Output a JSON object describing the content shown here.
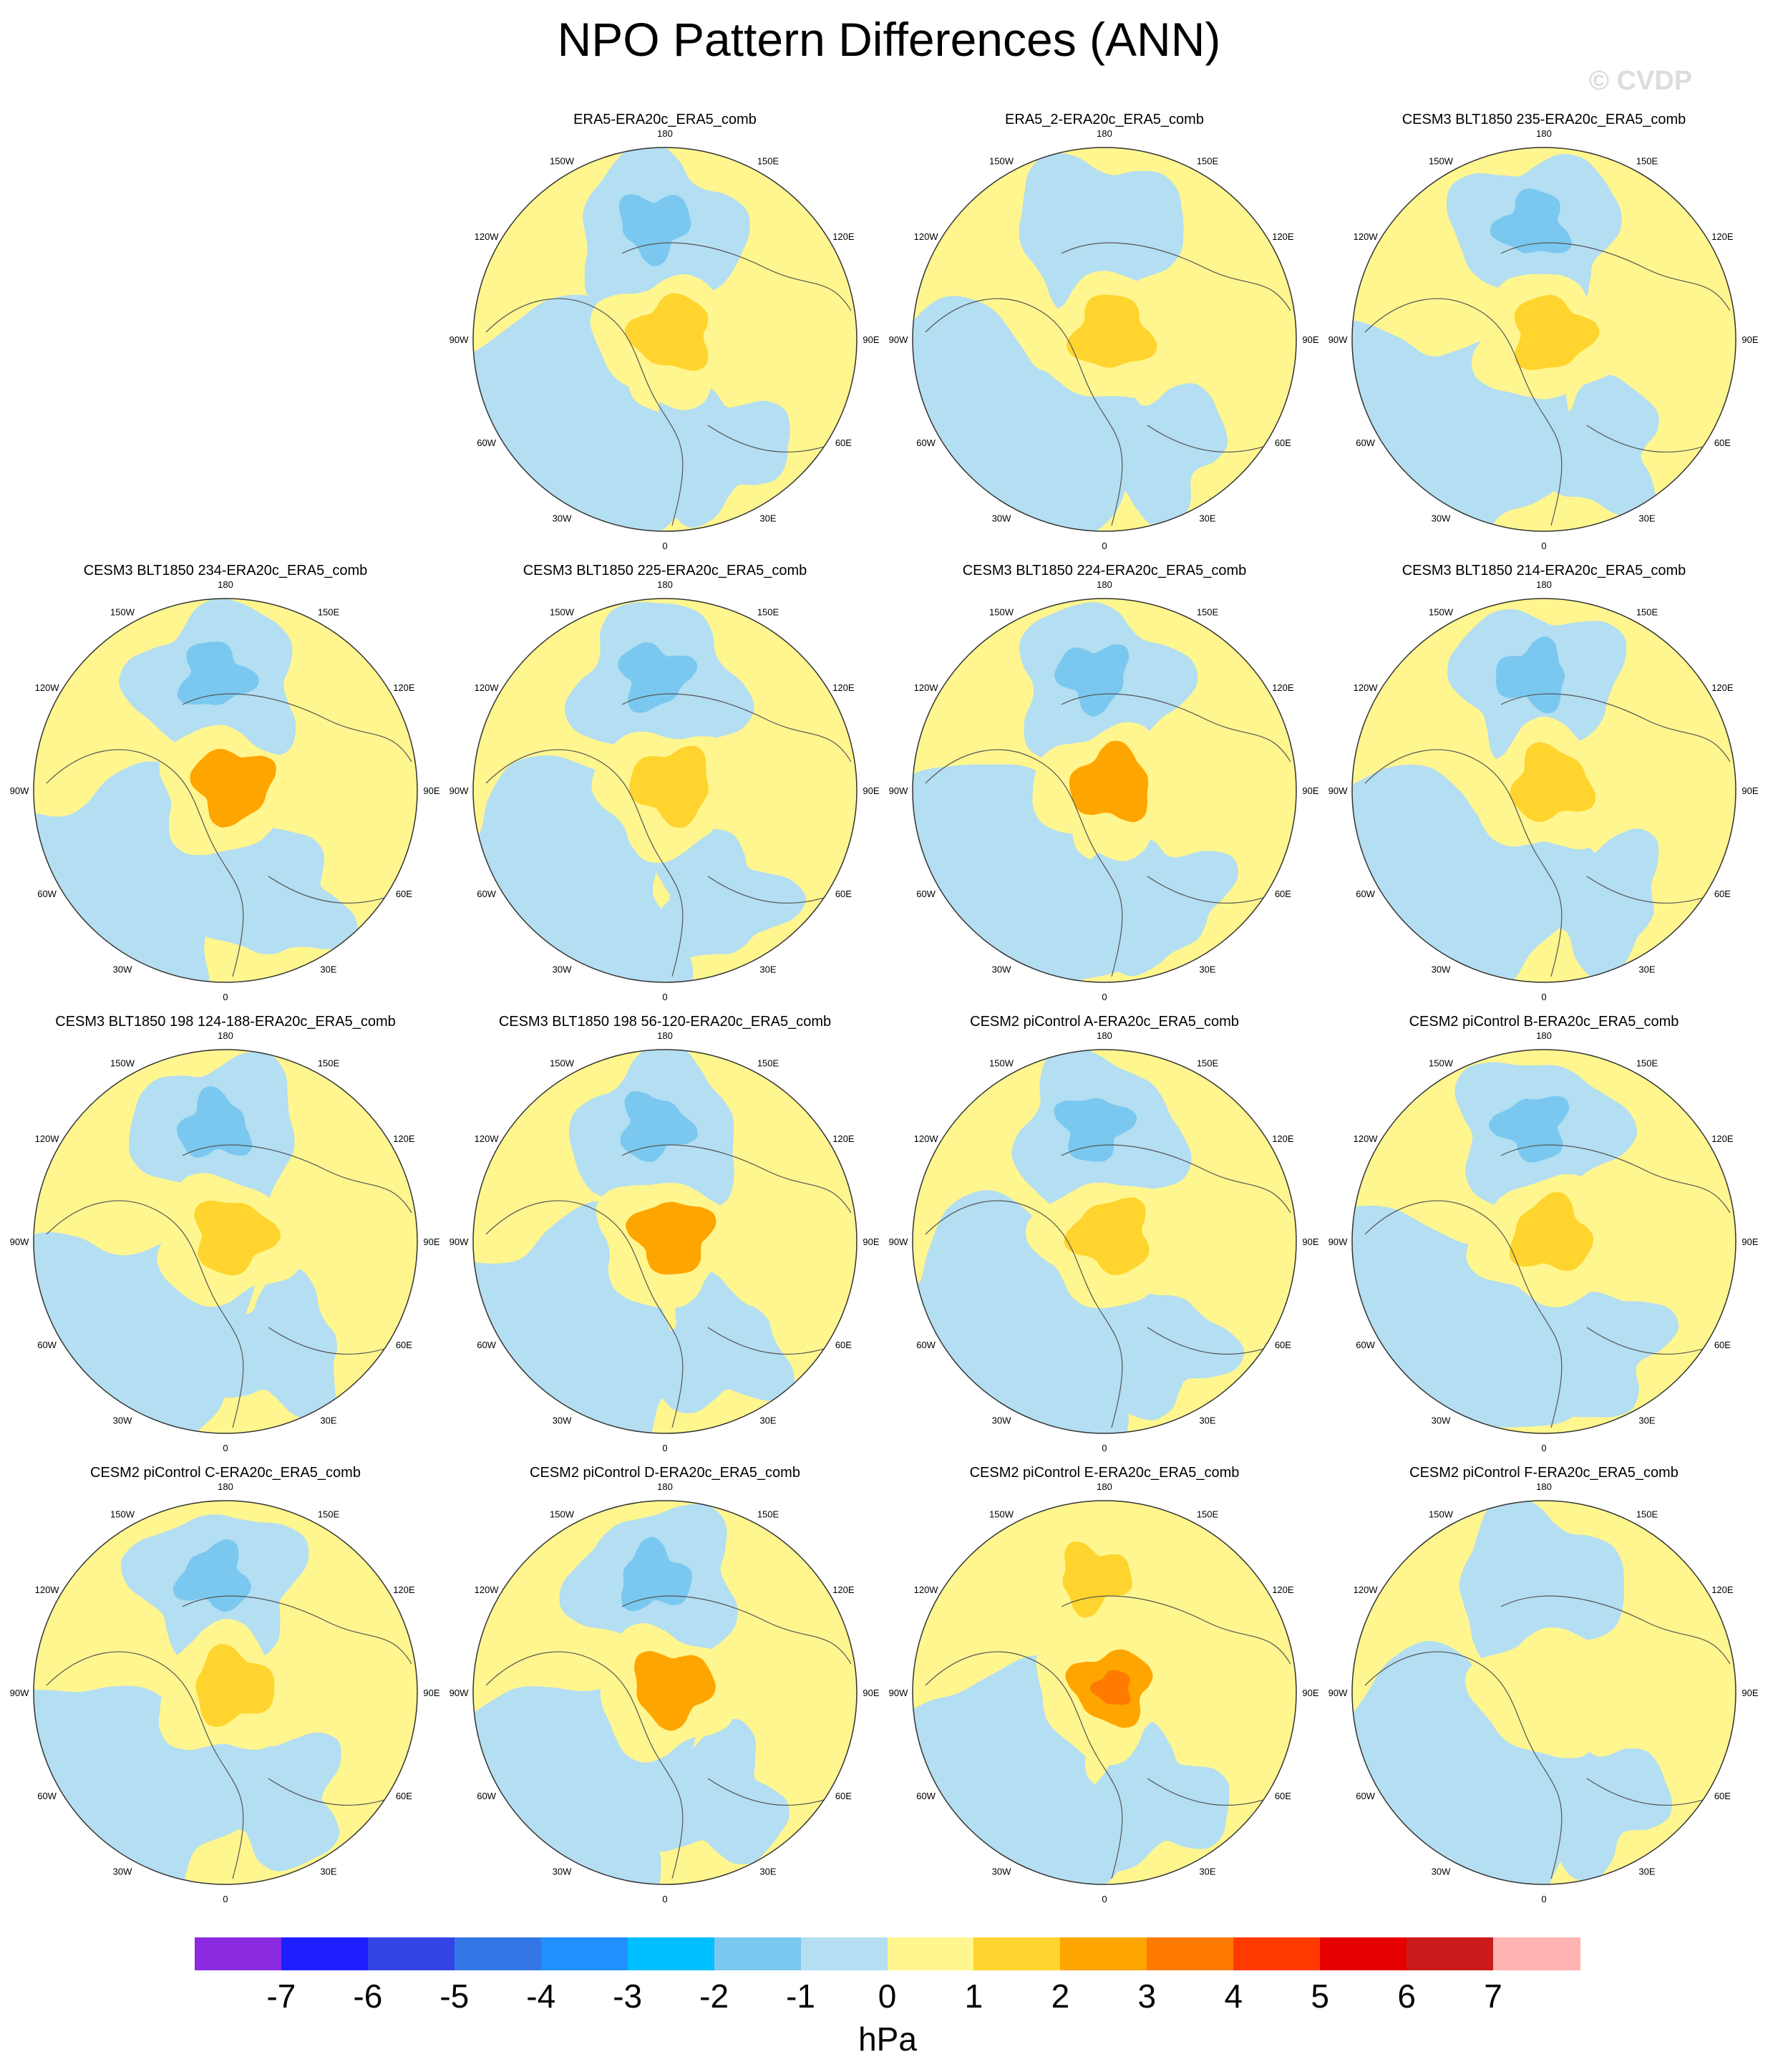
{
  "title": "NPO Pattern Differences (ANN)",
  "watermark": "© CVDP",
  "lon_labels": [
    "180",
    "150E",
    "120E",
    "90E",
    "60E",
    "30E",
    "0",
    "30W",
    "60W",
    "90W",
    "120W",
    "150W"
  ],
  "panels": [
    {
      "title": "ERA5-ERA20c_ERA5_comb",
      "pacific_low": -1.5,
      "arctic_high": 2,
      "atlantic": -1
    },
    {
      "title": "ERA5_2-ERA20c_ERA5_comb",
      "pacific_low": -1,
      "arctic_high": 2,
      "atlantic": -1
    },
    {
      "title": "CESM3 BLT1850 235-ERA20c_ERA5_comb",
      "pacific_low": -1.5,
      "arctic_high": 1.5,
      "atlantic": -1
    },
    {
      "title": "CESM3 BLT1850 234-ERA20c_ERA5_comb",
      "pacific_low": -2,
      "arctic_high": 3,
      "atlantic": -1
    },
    {
      "title": "CESM3 BLT1850 225-ERA20c_ERA5_comb",
      "pacific_low": -2,
      "arctic_high": 1.5,
      "atlantic": -1
    },
    {
      "title": "CESM3 BLT1850 224-ERA20c_ERA5_comb",
      "pacific_low": -2,
      "arctic_high": 3,
      "atlantic": -1
    },
    {
      "title": "CESM3 BLT1850 214-ERA20c_ERA5_comb",
      "pacific_low": -2,
      "arctic_high": 1.5,
      "atlantic": -1
    },
    {
      "title": "CESM3 BLT1850 198 124-188-ERA20c_ERA5_comb",
      "pacific_low": -2,
      "arctic_high": 2,
      "atlantic": -1
    },
    {
      "title": "CESM3 BLT1850 198 56-120-ERA20c_ERA5_comb",
      "pacific_low": -2,
      "arctic_high": 3,
      "atlantic": -1
    },
    {
      "title": "CESM2 piControl A-ERA20c_ERA5_comb",
      "pacific_low": -1.5,
      "arctic_high": 1.5,
      "atlantic": -1
    },
    {
      "title": "CESM2 piControl B-ERA20c_ERA5_comb",
      "pacific_low": -1.5,
      "arctic_high": 1.5,
      "atlantic": -1
    },
    {
      "title": "CESM2 piControl C-ERA20c_ERA5_comb",
      "pacific_low": -1.5,
      "arctic_high": 2,
      "atlantic": -1
    },
    {
      "title": "CESM2 piControl D-ERA20c_ERA5_comb",
      "pacific_low": -1.5,
      "arctic_high": 3,
      "atlantic": -1
    },
    {
      "title": "CESM2 piControl E-ERA20c_ERA5_comb",
      "pacific_low": 1.5,
      "arctic_high": 4,
      "atlantic": -1
    },
    {
      "title": "CESM2 piControl F-ERA20c_ERA5_comb",
      "pacific_low": -1,
      "arctic_high": 1,
      "atlantic": -1
    }
  ],
  "colorbar": {
    "colors": [
      "#8a2be2",
      "#1e1eff",
      "#3344e6",
      "#3377e6",
      "#1e90ff",
      "#00bfff",
      "#7ac8f0",
      "#b4def2",
      "#fff68f",
      "#ffd42e",
      "#ffa500",
      "#ff7a00",
      "#ff3a00",
      "#e60000",
      "#cc1b1b",
      "#ffb3b3"
    ],
    "ticks": [
      "-7",
      "-6",
      "-5",
      "-4",
      "-3",
      "-2",
      "-1",
      "0",
      "1",
      "2",
      "3",
      "4",
      "5",
      "6",
      "7"
    ],
    "units": "hPa"
  }
}
